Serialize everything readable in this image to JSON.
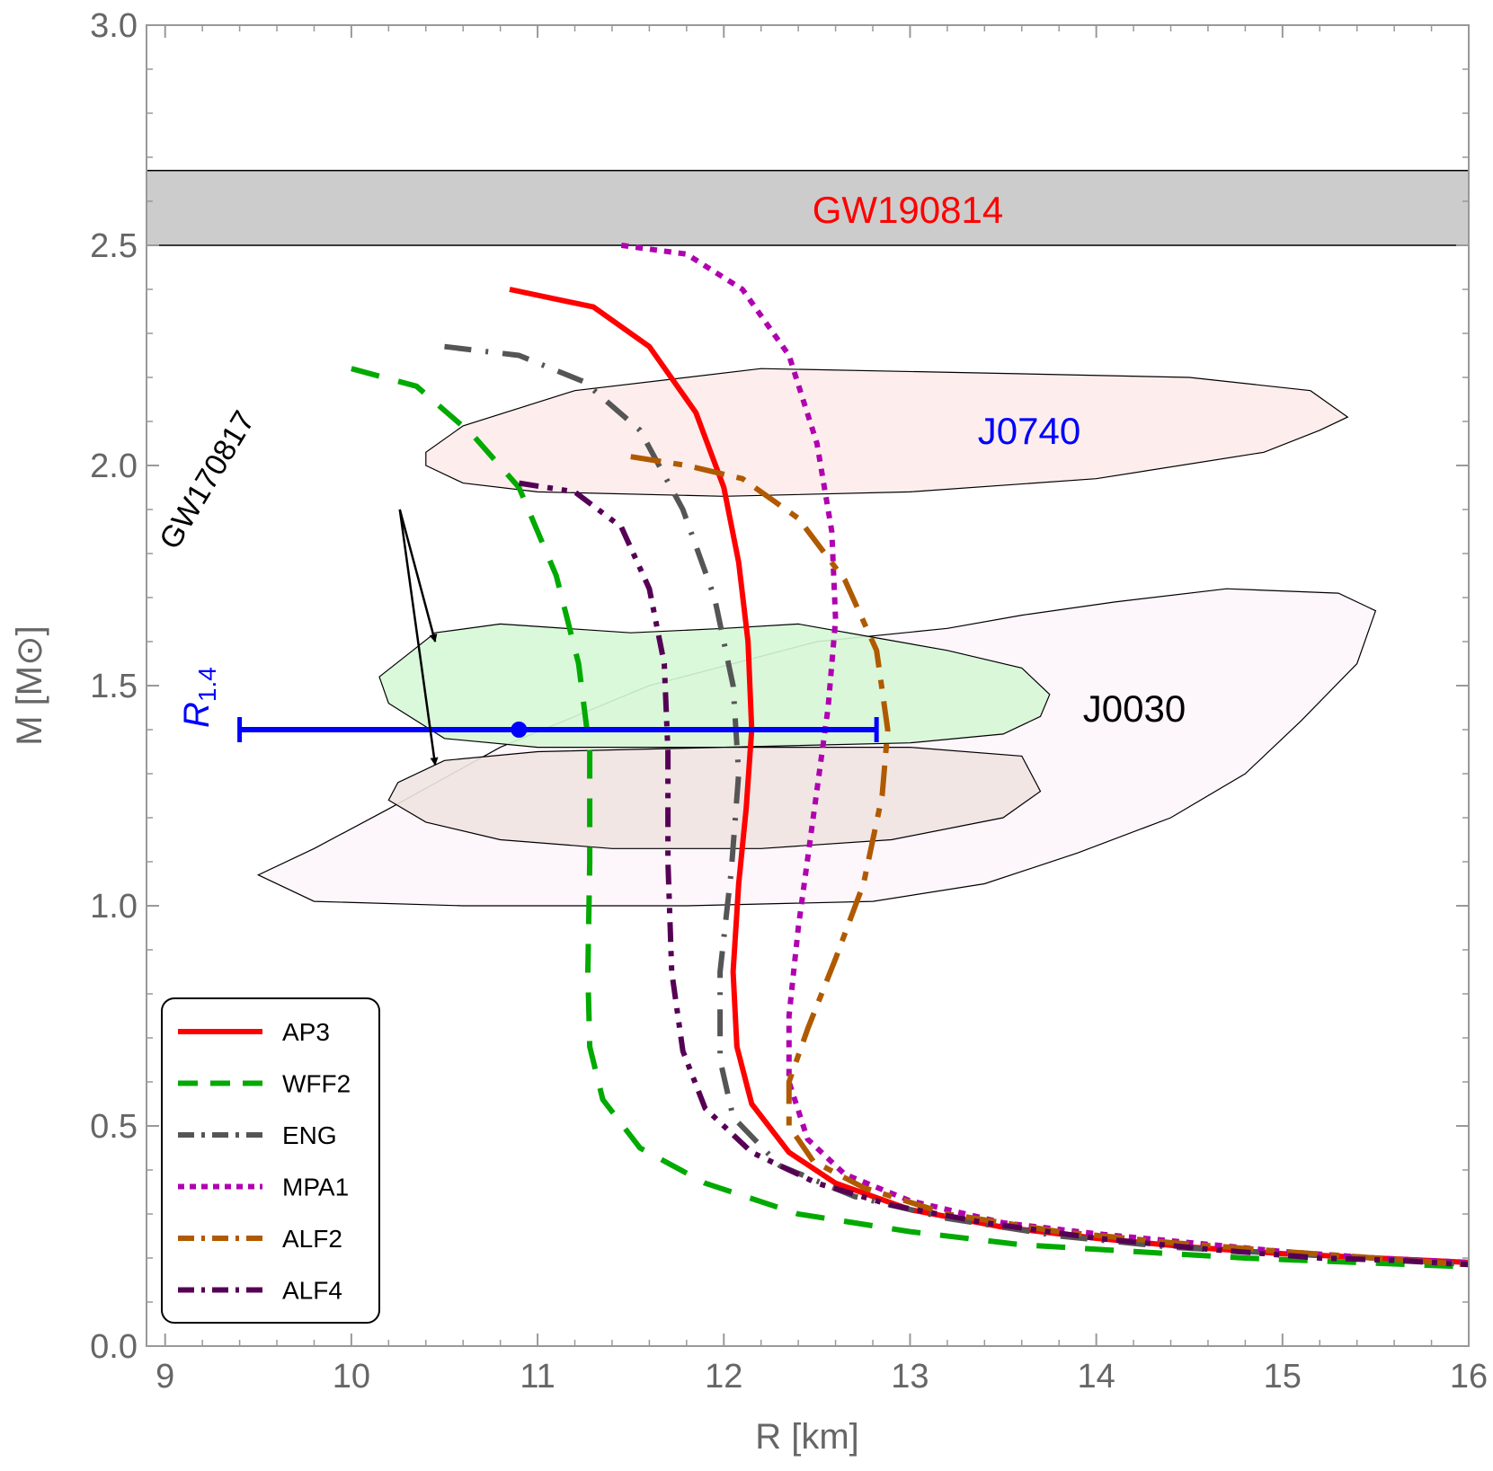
{
  "chart_data": {
    "type": "line",
    "xlabel": "R [km]",
    "ylabel": "M [M⊙]",
    "xlim": [
      8.9,
      16
    ],
    "ylim": [
      0,
      3
    ],
    "x_ticks": [
      "9",
      "10",
      "11",
      "12",
      "13",
      "14",
      "15",
      "16"
    ],
    "y_ticks": [
      "0.0",
      "0.5",
      "1.0",
      "1.5",
      "2.0",
      "2.5",
      "3.0"
    ],
    "grid": false,
    "legend_position": "bottom-left",
    "band": {
      "label": "GW190814",
      "label_color": "#ff0000",
      "fill": "#cccccc",
      "y_range": [
        2.5,
        2.67
      ]
    },
    "regions": [
      {
        "label": "J0030",
        "label_color": "#000000",
        "fill": "#fdf5fb",
        "outline": [
          [
            9.5,
            1.07
          ],
          [
            9.8,
            1.01
          ],
          [
            10.6,
            1.0
          ],
          [
            11.8,
            1.0
          ],
          [
            12.8,
            1.01
          ],
          [
            13.4,
            1.05
          ],
          [
            13.9,
            1.12
          ],
          [
            14.4,
            1.2
          ],
          [
            14.8,
            1.3
          ],
          [
            15.1,
            1.42
          ],
          [
            15.4,
            1.55
          ],
          [
            15.5,
            1.67
          ],
          [
            15.3,
            1.71
          ],
          [
            14.7,
            1.72
          ],
          [
            14.1,
            1.69
          ],
          [
            13.6,
            1.66
          ],
          [
            13.2,
            1.63
          ],
          [
            12.5,
            1.6
          ],
          [
            11.6,
            1.5
          ],
          [
            10.8,
            1.36
          ],
          [
            10.2,
            1.22
          ],
          [
            9.8,
            1.13
          ],
          [
            9.5,
            1.07
          ]
        ]
      },
      {
        "label": "J0740",
        "label_color": "#0000ff",
        "fill": "#fdeceb",
        "outline": [
          [
            10.4,
            2.0
          ],
          [
            10.6,
            1.96
          ],
          [
            11.0,
            1.94
          ],
          [
            12.0,
            1.93
          ],
          [
            13.0,
            1.94
          ],
          [
            14.0,
            1.97
          ],
          [
            14.9,
            2.03
          ],
          [
            15.2,
            2.08
          ],
          [
            15.35,
            2.11
          ],
          [
            15.15,
            2.17
          ],
          [
            14.5,
            2.2
          ],
          [
            13.4,
            2.21
          ],
          [
            12.2,
            2.22
          ],
          [
            11.2,
            2.17
          ],
          [
            10.6,
            2.09
          ],
          [
            10.4,
            2.03
          ],
          [
            10.4,
            2.0
          ]
        ]
      },
      {
        "label": "",
        "fill": "#d6f7d6",
        "outline": [
          [
            10.15,
            1.52
          ],
          [
            10.3,
            1.57
          ],
          [
            10.45,
            1.62
          ],
          [
            10.8,
            1.64
          ],
          [
            11.5,
            1.62
          ],
          [
            12.0,
            1.63
          ],
          [
            12.4,
            1.64
          ],
          [
            12.8,
            1.61
          ],
          [
            13.2,
            1.58
          ],
          [
            13.6,
            1.54
          ],
          [
            13.75,
            1.48
          ],
          [
            13.7,
            1.43
          ],
          [
            13.5,
            1.39
          ],
          [
            13.0,
            1.37
          ],
          [
            12.0,
            1.36
          ],
          [
            11.0,
            1.36
          ],
          [
            10.5,
            1.38
          ],
          [
            10.2,
            1.46
          ],
          [
            10.15,
            1.52
          ]
        ]
      },
      {
        "label": "",
        "fill": "#efe4e1",
        "outline": [
          [
            10.2,
            1.24
          ],
          [
            10.4,
            1.19
          ],
          [
            10.8,
            1.15
          ],
          [
            11.4,
            1.13
          ],
          [
            12.2,
            1.13
          ],
          [
            12.9,
            1.15
          ],
          [
            13.5,
            1.2
          ],
          [
            13.7,
            1.26
          ],
          [
            13.6,
            1.34
          ],
          [
            13.0,
            1.36
          ],
          [
            12.0,
            1.36
          ],
          [
            11.0,
            1.35
          ],
          [
            10.5,
            1.33
          ],
          [
            10.25,
            1.28
          ],
          [
            10.2,
            1.24
          ]
        ]
      }
    ],
    "series": [
      {
        "name": "AP3",
        "color": "#ff0000",
        "style": "solid",
        "width": 6,
        "points": [
          [
            10.85,
            2.4
          ],
          [
            11.3,
            2.36
          ],
          [
            11.6,
            2.27
          ],
          [
            11.85,
            2.12
          ],
          [
            12.0,
            1.95
          ],
          [
            12.08,
            1.78
          ],
          [
            12.13,
            1.6
          ],
          [
            12.15,
            1.4
          ],
          [
            12.12,
            1.22
          ],
          [
            12.08,
            1.05
          ],
          [
            12.05,
            0.85
          ],
          [
            12.07,
            0.68
          ],
          [
            12.15,
            0.55
          ],
          [
            12.35,
            0.44
          ],
          [
            12.6,
            0.37
          ],
          [
            13.0,
            0.31
          ],
          [
            13.5,
            0.27
          ],
          [
            14.0,
            0.245
          ],
          [
            14.5,
            0.225
          ],
          [
            15.0,
            0.21
          ],
          [
            15.5,
            0.2
          ],
          [
            16.0,
            0.19
          ]
        ]
      },
      {
        "name": "WFF2",
        "color": "#00aa00",
        "style": "dash",
        "width": 6,
        "points": [
          [
            10.0,
            2.22
          ],
          [
            10.35,
            2.18
          ],
          [
            10.65,
            2.07
          ],
          [
            10.9,
            1.95
          ],
          [
            11.1,
            1.75
          ],
          [
            11.22,
            1.55
          ],
          [
            11.28,
            1.35
          ],
          [
            11.28,
            1.1
          ],
          [
            11.27,
            0.85
          ],
          [
            11.28,
            0.68
          ],
          [
            11.35,
            0.56
          ],
          [
            11.55,
            0.45
          ],
          [
            11.9,
            0.37
          ],
          [
            12.4,
            0.3
          ],
          [
            13.0,
            0.26
          ],
          [
            13.6,
            0.23
          ],
          [
            14.2,
            0.215
          ],
          [
            14.8,
            0.2
          ],
          [
            15.4,
            0.19
          ],
          [
            16.0,
            0.18
          ]
        ]
      },
      {
        "name": "ENG",
        "color": "#555555",
        "style": "dashdot",
        "width": 6,
        "points": [
          [
            10.5,
            2.27
          ],
          [
            10.9,
            2.25
          ],
          [
            11.25,
            2.19
          ],
          [
            11.55,
            2.08
          ],
          [
            11.78,
            1.9
          ],
          [
            11.95,
            1.7
          ],
          [
            12.05,
            1.5
          ],
          [
            12.08,
            1.3
          ],
          [
            12.04,
            1.08
          ],
          [
            11.98,
            0.85
          ],
          [
            11.98,
            0.65
          ],
          [
            12.05,
            0.52
          ],
          [
            12.3,
            0.41
          ],
          [
            12.7,
            0.34
          ],
          [
            13.2,
            0.29
          ],
          [
            13.8,
            0.25
          ],
          [
            14.4,
            0.225
          ],
          [
            15.0,
            0.21
          ],
          [
            15.5,
            0.2
          ],
          [
            16.0,
            0.185
          ]
        ]
      },
      {
        "name": "MPA1",
        "color": "#b000b0",
        "style": "dot",
        "width": 6,
        "points": [
          [
            11.45,
            2.5
          ],
          [
            11.8,
            2.48
          ],
          [
            12.1,
            2.4
          ],
          [
            12.35,
            2.25
          ],
          [
            12.5,
            2.05
          ],
          [
            12.58,
            1.85
          ],
          [
            12.6,
            1.65
          ],
          [
            12.56,
            1.45
          ],
          [
            12.48,
            1.2
          ],
          [
            12.4,
            0.95
          ],
          [
            12.35,
            0.75
          ],
          [
            12.35,
            0.6
          ],
          [
            12.45,
            0.47
          ],
          [
            12.65,
            0.39
          ],
          [
            13.0,
            0.33
          ],
          [
            13.5,
            0.28
          ],
          [
            14.0,
            0.255
          ],
          [
            14.5,
            0.235
          ],
          [
            15.0,
            0.215
          ],
          [
            15.5,
            0.2
          ],
          [
            16.0,
            0.19
          ]
        ]
      },
      {
        "name": "ALF2",
        "color": "#b05a00",
        "style": "longdashdot",
        "width": 6,
        "points": [
          [
            11.5,
            2.02
          ],
          [
            11.8,
            2.0
          ],
          [
            12.1,
            1.97
          ],
          [
            12.4,
            1.88
          ],
          [
            12.65,
            1.74
          ],
          [
            12.82,
            1.58
          ],
          [
            12.88,
            1.4
          ],
          [
            12.85,
            1.25
          ],
          [
            12.75,
            1.05
          ],
          [
            12.6,
            0.88
          ],
          [
            12.45,
            0.72
          ],
          [
            12.35,
            0.6
          ],
          [
            12.35,
            0.5
          ],
          [
            12.48,
            0.42
          ],
          [
            12.75,
            0.36
          ],
          [
            13.2,
            0.3
          ],
          [
            13.8,
            0.26
          ],
          [
            14.4,
            0.235
          ],
          [
            15.0,
            0.215
          ],
          [
            15.5,
            0.2
          ],
          [
            16.0,
            0.185
          ]
        ]
      },
      {
        "name": "ALF4",
        "color": "#550055",
        "style": "dashdotdot",
        "width": 6,
        "points": [
          [
            10.9,
            1.96
          ],
          [
            11.2,
            1.94
          ],
          [
            11.45,
            1.86
          ],
          [
            11.6,
            1.72
          ],
          [
            11.68,
            1.55
          ],
          [
            11.7,
            1.35
          ],
          [
            11.7,
            1.1
          ],
          [
            11.72,
            0.85
          ],
          [
            11.78,
            0.67
          ],
          [
            11.9,
            0.54
          ],
          [
            12.15,
            0.44
          ],
          [
            12.5,
            0.37
          ],
          [
            12.9,
            0.32
          ],
          [
            13.4,
            0.28
          ],
          [
            14.0,
            0.245
          ],
          [
            14.6,
            0.22
          ],
          [
            15.2,
            0.2
          ],
          [
            15.6,
            0.195
          ],
          [
            16.0,
            0.185
          ]
        ]
      }
    ],
    "error_bar": {
      "label": "R",
      "label_subscript": "1.4",
      "color": "#0000ff",
      "y": 1.4,
      "x_center": 10.9,
      "x_low": 9.4,
      "x_high": 12.82
    },
    "annotation": {
      "label": "GW170817",
      "arrows": [
        {
          "from": [
            10.26,
            1.9
          ],
          "to": [
            10.45,
            1.6
          ]
        },
        {
          "from": [
            10.26,
            1.9
          ],
          "to": [
            10.45,
            1.32
          ]
        }
      ]
    }
  }
}
